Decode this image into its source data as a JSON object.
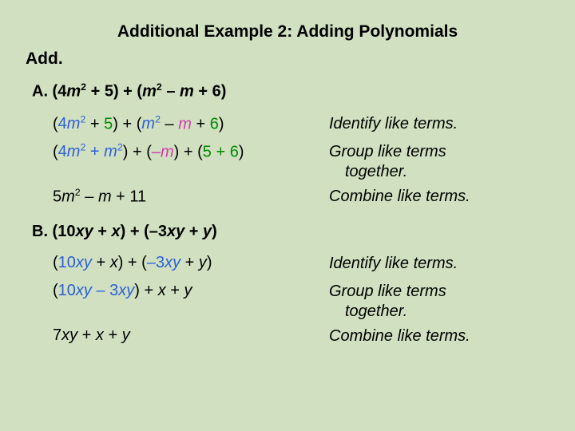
{
  "colors": {
    "background": "#d0e0c0",
    "text": "#000000",
    "blue": "#2e5fd6",
    "green": "#008a00",
    "pink": "#d63ab0"
  },
  "title": "Additional Example 2: Adding Polynomials",
  "add": "Add.",
  "identify": "Identify like terms.",
  "group": "Group like terms",
  "together": "together.",
  "combine": "Combine like terms.",
  "A": {
    "label": "A. (4",
    "mid1": " + 5) + (",
    "mid2": " – ",
    "end": " + 6)",
    "m": "m",
    "sup2": "2",
    "step1": {
      "op": "(",
      "v1a": "4",
      "v1m": "m",
      "p1": " + ",
      "v2": "5",
      "p2": ") + (",
      "v3m": "m",
      "p3": " – ",
      "v4m": "m",
      "p4": " + ",
      "v5": "6",
      "cl": ")"
    },
    "step2": {
      "op": "(",
      "t1a": "4",
      "t1m": "m",
      "plus1": " + ",
      "t2m": "m",
      "cl1": ")",
      "plus2": " + (",
      "t3": "–",
      "t3m": "m",
      "cl2": ") + (",
      "t4": "5 + 6",
      "cl3": ")"
    },
    "step3": {
      "a": "5",
      "m": "m",
      "mid": " – ",
      "m2": "m",
      "end": " + 11"
    }
  },
  "B": {
    "label": "B. (10",
    "xy": "xy",
    "x": "x",
    "y": "y",
    "plusx": " + ",
    "mid": ") + (–3",
    "plusy": " + ",
    "end": ")",
    "step1": {
      "op": "(",
      "t1a": "10",
      "t1xy": "xy",
      "plus1": " + ",
      "t2x": "x",
      "mid": ") + (",
      "t3a": "–3",
      "t3xy": "xy",
      "plus2": " + ",
      "t4y": "y",
      "cl": ")"
    },
    "step2": {
      "op": "(",
      "t1a": "10",
      "t1xy": "xy",
      "minus": " – 3",
      "t2xy": "xy",
      "cl": ")",
      "plus1": " + ",
      "x": "x",
      "plus2": " + ",
      "y": "y"
    },
    "step3": {
      "a": "7",
      "xy": "xy",
      "plus1": " + ",
      "x": "x",
      "plus2": " + ",
      "y": "y"
    }
  }
}
